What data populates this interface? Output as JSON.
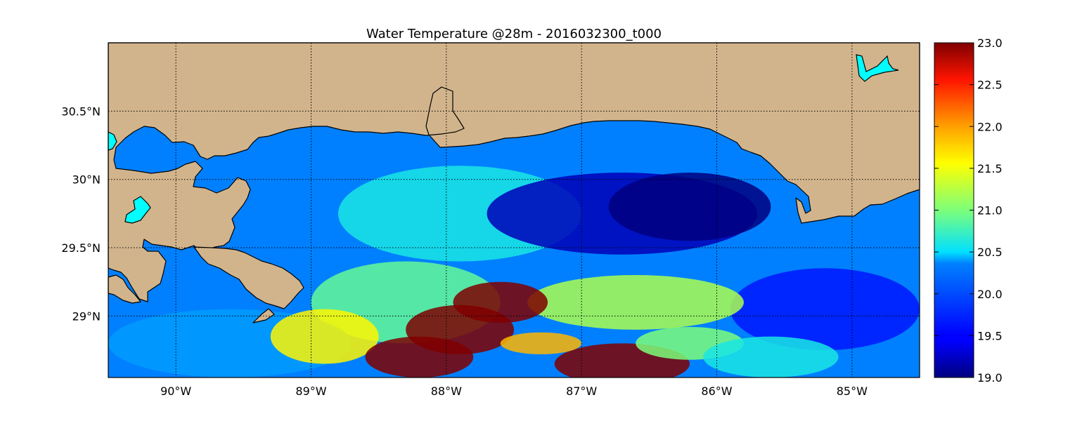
{
  "title": "Water Temperature @28m - 2016032300_t000",
  "map": {
    "lon_range": [
      -90.5,
      -84.5
    ],
    "lat_range": [
      28.55,
      31.0
    ],
    "lon_ticks": [
      {
        "value": -90,
        "label": "90°W"
      },
      {
        "value": -89,
        "label": "89°W"
      },
      {
        "value": -88,
        "label": "88°W"
      },
      {
        "value": -87,
        "label": "87°W"
      },
      {
        "value": -86,
        "label": "86°W"
      },
      {
        "value": -85,
        "label": "85°W"
      }
    ],
    "lat_ticks": [
      {
        "value": 30.5,
        "label": "30.5°N"
      },
      {
        "value": 30.0,
        "label": "30°N"
      },
      {
        "value": 29.5,
        "label": "29.5°N"
      },
      {
        "value": 29.0,
        "label": "29°N"
      }
    ],
    "grid": true,
    "land_color": "#D2B48C",
    "water_color": "#0080FF",
    "lake_color": "#00FFFF"
  },
  "colorbar": {
    "min": 19.0,
    "max": 23.0,
    "ticks": [
      "23.0",
      "22.5",
      "22.0",
      "21.5",
      "21.0",
      "20.5",
      "20.0",
      "19.5",
      "19.0"
    ],
    "colormap": "jet"
  }
}
